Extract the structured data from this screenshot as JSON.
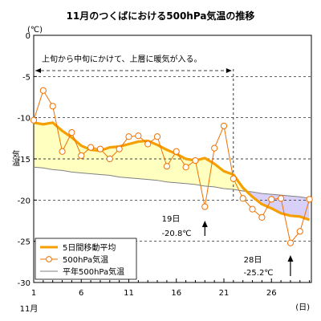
{
  "chart_data": {
    "type": "line",
    "title": "11月のつくばにおける500hPa気温の推移",
    "ylabel": "気温",
    "yunit": "(℃)",
    "xunit": "(日)",
    "xmonth": "11月",
    "xlim": [
      1,
      30
    ],
    "ylim": [
      -30,
      0
    ],
    "xticks": [
      1,
      6,
      11,
      16,
      21,
      26
    ],
    "yticks": [
      0,
      -5,
      -10,
      -15,
      -20,
      -25,
      -30
    ],
    "grid": "horizontal-dashed",
    "legend_position": "bottom-left",
    "colors": {
      "moving_avg": "#f5a000",
      "observed": "#f07000",
      "normal": "#808080",
      "warm_fill": "#ffffc0",
      "cold_fill": "#d8d0f8"
    },
    "x": [
      1,
      2,
      3,
      4,
      5,
      6,
      7,
      8,
      9,
      10,
      11,
      12,
      13,
      14,
      15,
      16,
      17,
      18,
      19,
      20,
      21,
      22,
      23,
      24,
      25,
      26,
      27,
      28,
      29,
      30
    ],
    "series": [
      {
        "name": "5日間移動平均",
        "values": [
          -10.6,
          -10.8,
          -10.6,
          -11.6,
          -12.4,
          -13.4,
          -13.9,
          -14.0,
          -13.6,
          -13.5,
          -13.2,
          -12.9,
          -12.8,
          -13.3,
          -13.9,
          -14.4,
          -15.0,
          -15.2,
          -14.9,
          -15.6,
          -16.5,
          -16.9,
          -18.5,
          -19.6,
          -20.5,
          -21.0,
          -21.6,
          -21.9,
          -22.0,
          -22.4
        ]
      },
      {
        "name": "500hPa気温",
        "values": [
          -10.3,
          -6.7,
          -8.6,
          -14.1,
          -11.8,
          -14.6,
          -13.6,
          -13.8,
          -15.0,
          -13.8,
          -12.3,
          -12.2,
          -13.2,
          -12.3,
          -15.9,
          -14.1,
          -16.0,
          -15.2,
          -20.8,
          -13.7,
          -11.0,
          -17.4,
          -19.8,
          -21.1,
          -22.1,
          -19.9,
          -19.8,
          -25.2,
          -23.8,
          -19.9
        ]
      },
      {
        "name": "平年500hPa気温",
        "values": [
          -16.0,
          -16.1,
          -16.3,
          -16.4,
          -16.6,
          -16.7,
          -16.8,
          -16.9,
          -17.0,
          -17.2,
          -17.3,
          -17.4,
          -17.5,
          -17.6,
          -17.8,
          -17.9,
          -18.0,
          -18.1,
          -18.3,
          -18.4,
          -18.6,
          -18.7,
          -18.9,
          -19.0,
          -19.2,
          -19.3,
          -19.4,
          -19.5,
          -19.6,
          -19.8
        ]
      }
    ],
    "period_line_day": 22,
    "annotations": {
      "period_note": "上旬から中旬にかけて、上層に暖気が入る。",
      "low1_day": "19日",
      "low1_value": "-20.8℃",
      "low2_day": "28日",
      "low2_value": "-25.2℃"
    }
  }
}
